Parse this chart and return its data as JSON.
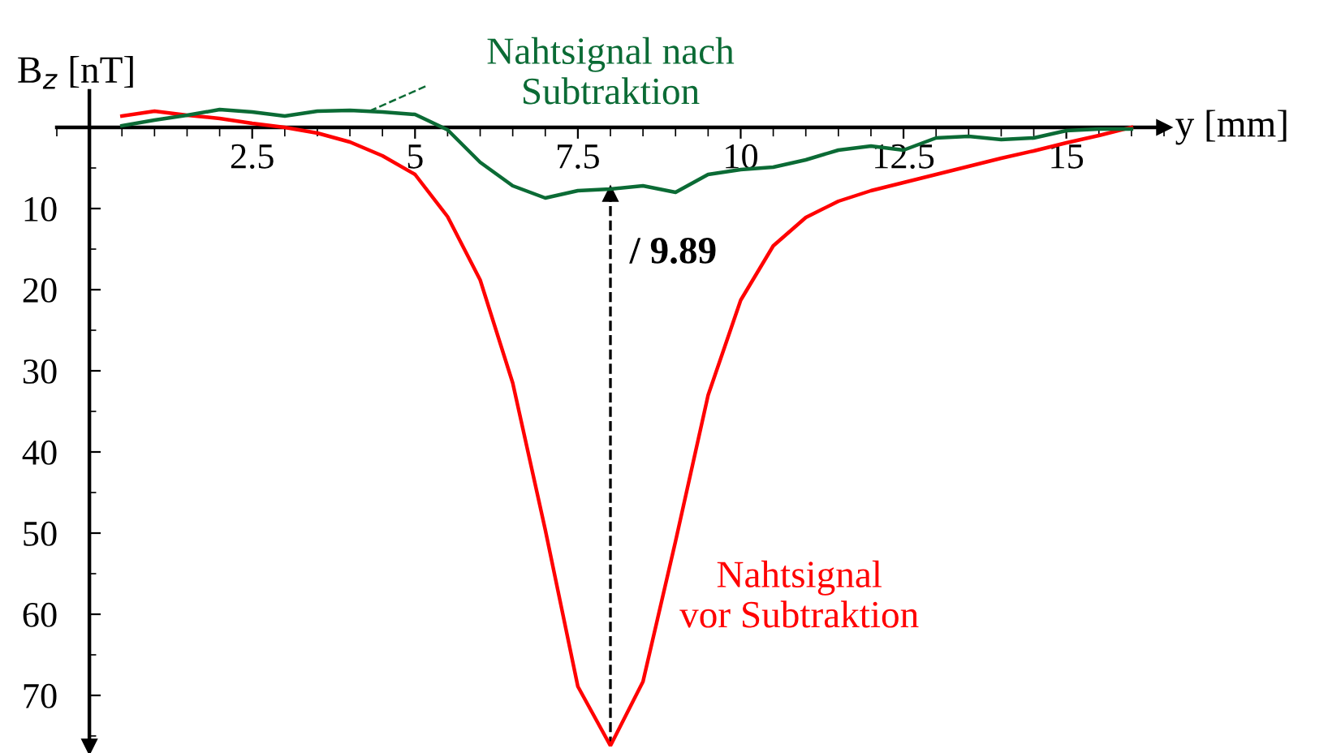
{
  "chart_data": {
    "type": "line",
    "xlabel": "y [mm]",
    "ylabel": "B$_{z}$ [nT]",
    "x": [
      0.5,
      1,
      1.5,
      2,
      2.5,
      3,
      3.5,
      4,
      4.5,
      5,
      5.5,
      6,
      6.5,
      7,
      7.5,
      8,
      8.5,
      9,
      9.5,
      10,
      10.5,
      11,
      11.5,
      12,
      12.5,
      13,
      13.5,
      14,
      14.5,
      15,
      15.5,
      16
    ],
    "series": [
      {
        "name": "Nahtsignal\nvor Subtraktion",
        "color": "#ff0000",
        "values": [
          -1.4,
          -2,
          -1.5,
          -1.1,
          -0.5,
          0,
          0.7,
          1.8,
          3.5,
          5.8,
          11,
          18.8,
          31.5,
          49.6,
          68.9,
          76.2,
          68.3,
          51,
          33,
          21.3,
          14.6,
          11.1,
          9.1,
          7.8,
          6.8,
          5.8,
          4.8,
          3.8,
          2.9,
          1.9,
          1.0,
          0
        ]
      },
      {
        "name": "Nahtsignal nach\nSubtraktion",
        "color": "#0b6b35",
        "values": [
          -0.2,
          -0.9,
          -1.5,
          -2.2,
          -1.9,
          -1.4,
          -2,
          -2.1,
          -1.9,
          -1.6,
          0.3,
          4.3,
          7.2,
          8.7,
          7.8,
          7.6,
          7.2,
          8.0,
          5.8,
          5.2,
          4.9,
          4.0,
          2.8,
          2.3,
          2.8,
          1.3,
          1.1,
          1.5,
          1.3,
          0.4,
          0.2,
          0.2
        ]
      }
    ],
    "xlim": [
      -0.5,
      16.5
    ],
    "ylim": [
      76.3,
      -4.5
    ],
    "xticks": [
      2.5,
      5,
      7.5,
      10,
      12.5,
      15
    ],
    "yticks": [
      10,
      20,
      30,
      40,
      50,
      60,
      70
    ],
    "ref_lines": [
      {
        "axis": "x",
        "value": 8,
        "color": "#000000",
        "line_style": "dashed"
      }
    ],
    "annotations": [
      {
        "text": "/ 9.89",
        "x": 8,
        "y": 15.6
      }
    ],
    "grid": false,
    "legend": false,
    "marker": "none",
    "line_style": "solid"
  }
}
